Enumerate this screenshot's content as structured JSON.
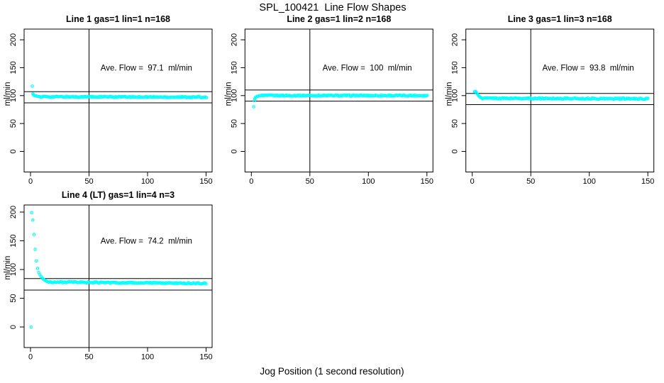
{
  "figure": {
    "title": "SPL_100421  Line Flow Shapes",
    "xlabel": "Jog Position (1 second resolution)",
    "background": "#ffffff"
  },
  "chart_data": {
    "type": "scatter",
    "title": "SPL_100421  Line Flow Shapes",
    "xlabel": "Jog Position (1 second resolution)",
    "ylabel": "ml/min",
    "x_ticks": [
      0,
      50,
      100,
      150
    ],
    "y_ticks": [
      0,
      50,
      100,
      150,
      200
    ],
    "xlim": [
      0,
      155
    ],
    "ylim": [
      -30,
      215
    ],
    "grid": false,
    "marker": "open-circle",
    "marker_color": "#00ffff",
    "line_color": "#000000",
    "vline_x": 50,
    "panels": [
      {
        "title": "Line 1 gas=1 lin=1 n=168",
        "annotation": "Ave. Flow =  97.1  ml/min",
        "avg_flow_ml_min": 97.1,
        "n": 168,
        "ref_lines": [
          107.1,
          87.1
        ],
        "transient_points": [
          [
            1.5,
            117
          ],
          [
            2,
            103
          ],
          [
            2.5,
            101.5
          ],
          [
            3,
            100.5
          ],
          [
            4,
            99.8
          ],
          [
            5,
            99.2
          ],
          [
            6,
            98.8
          ],
          [
            7,
            98.5
          ],
          [
            8,
            98.2
          ]
        ],
        "plateau": {
          "x_start": 9,
          "x_end": 150.5,
          "step": 0.9,
          "y_start": 98.0,
          "y_end": 97.2
        }
      },
      {
        "title": "Line 2 gas=1 lin=2 n=168",
        "annotation": "Ave. Flow =  100  ml/min",
        "avg_flow_ml_min": 100,
        "n": 168,
        "ref_lines": [
          110,
          90
        ],
        "transient_points": [
          [
            2,
            80
          ],
          [
            2.5,
            91
          ],
          [
            3,
            94.5
          ],
          [
            3.5,
            96.5
          ],
          [
            4,
            97.5
          ],
          [
            5,
            98.6
          ],
          [
            6,
            99.3
          ],
          [
            7,
            99.8
          ],
          [
            8,
            100.1
          ]
        ],
        "plateau": {
          "x_start": 9,
          "x_end": 150.5,
          "step": 0.9,
          "y_start": 100.1,
          "y_end": 100.0
        }
      },
      {
        "title": "Line 3 gas=1 lin=3 n=168",
        "annotation": "Ave. Flow =  93.8  ml/min",
        "avg_flow_ml_min": 93.8,
        "n": 168,
        "ref_lines": [
          103.8,
          83.8
        ],
        "transient_points": [
          [
            2,
            107
          ],
          [
            2.6,
            107.5
          ],
          [
            3.2,
            106.8
          ],
          [
            4,
            104
          ],
          [
            4.8,
            101.5
          ],
          [
            5.6,
            99.5
          ],
          [
            6.4,
            97.8
          ],
          [
            7.2,
            96.5
          ],
          [
            8,
            95.8
          ]
        ],
        "plateau": {
          "x_start": 8.8,
          "x_end": 150.5,
          "step": 0.9,
          "y_start": 95.3,
          "y_end": 94.3
        }
      },
      {
        "title": "Line 4 (LT) gas=1 lin=4 n=3",
        "annotation": "Ave. Flow =  74.2  ml/min",
        "avg_flow_ml_min": 74.2,
        "n": 3,
        "ref_lines": [
          84.2,
          64.2
        ],
        "transient_points": [
          [
            0.5,
            0
          ],
          [
            1,
            199
          ],
          [
            2,
            186
          ],
          [
            3,
            161
          ],
          [
            4,
            135
          ],
          [
            5,
            115
          ],
          [
            6,
            102
          ],
          [
            7,
            95
          ],
          [
            8,
            91
          ],
          [
            9,
            87.5
          ],
          [
            10,
            85
          ],
          [
            11,
            83.2
          ],
          [
            12,
            81.7
          ],
          [
            13,
            80.5
          ],
          [
            14,
            79.4
          ]
        ],
        "plateau": {
          "x_start": 15,
          "x_end": 150.5,
          "step": 0.9,
          "y_start": 78.2,
          "y_end": 75.8
        }
      }
    ]
  }
}
